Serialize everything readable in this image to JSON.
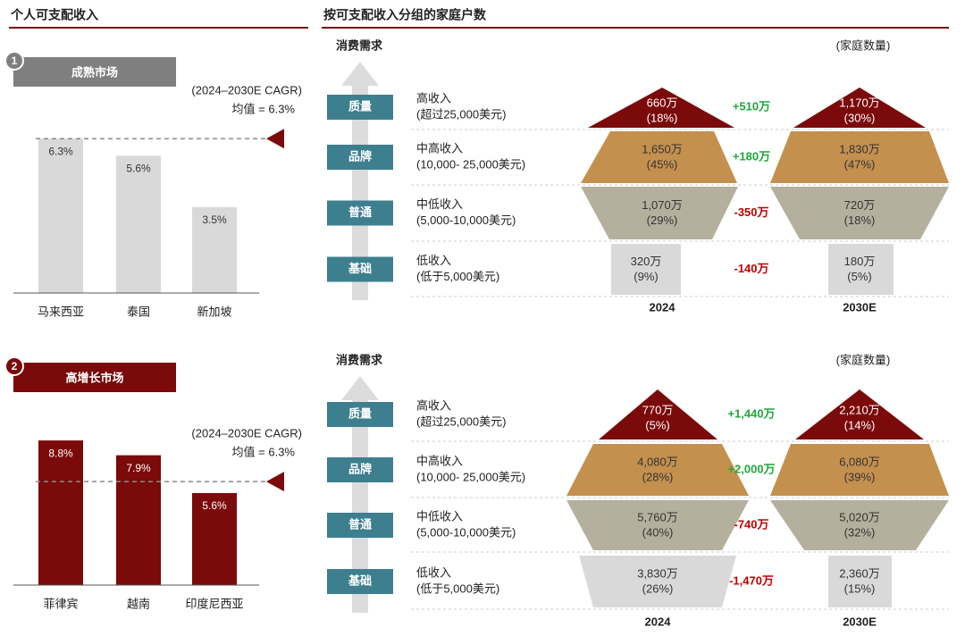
{
  "left_title": "个人可支配收入",
  "right_title": "按可支配收入分组的家庭户数",
  "chart_data": [
    {
      "type": "bar",
      "badge": "1",
      "title": "成熟市场",
      "subtitle": "(2024–2030E CAGR)",
      "average": 6.3,
      "average_label": "均值 = 6.3%",
      "categories": [
        "马来西亚",
        "泰国",
        "新加坡"
      ],
      "values": [
        6.3,
        5.6,
        3.5
      ],
      "value_labels": [
        "6.3%",
        "5.6%",
        "3.5%"
      ],
      "color": "#d9d9d9",
      "label_color": "#333333",
      "header_color": "#7f7f7f",
      "ylim": [
        0,
        7
      ]
    },
    {
      "type": "bar",
      "badge": "2",
      "title": "高增长市场",
      "subtitle": "(2024–2030E CAGR)",
      "average": 6.3,
      "average_label": "均值 = 6.3%",
      "categories": [
        "菲律宾",
        "越南",
        "印度尼西亚"
      ],
      "values": [
        8.8,
        7.9,
        5.6
      ],
      "value_labels": [
        "8.8%",
        "7.9%",
        "5.6%"
      ],
      "color": "#7b0a0a",
      "label_color": "#ffffff",
      "header_color": "#7b0a0a",
      "ylim": [
        0,
        10
      ]
    }
  ],
  "pyramids": [
    {
      "axis_label": "消费需求",
      "unit_label": "(家庭数量)",
      "columns": [
        "2024",
        "2030E"
      ],
      "tiers": [
        {
          "tag": "质量",
          "name": "高收入",
          "range": "(超过25,000美元)",
          "cells": [
            [
              "660万",
              "(18%)"
            ],
            [
              "1,170万",
              "(30%)"
            ]
          ],
          "change": "+510万"
        },
        {
          "tag": "品牌",
          "name": "中高收入",
          "range": "(10,000- 25,000美元)",
          "cells": [
            [
              "1,650万",
              "(45%)"
            ],
            [
              "1,830万",
              "(47%)"
            ]
          ],
          "change": "+180万"
        },
        {
          "tag": "普通",
          "name": "中低收入",
          "range": "(5,000-10,000美元)",
          "cells": [
            [
              "1,070万",
              "(29%)"
            ],
            [
              "720万",
              "(18%)"
            ]
          ],
          "change": "-350万"
        },
        {
          "tag": "基础",
          "name": "低收入",
          "range": "(低于5,000美元)",
          "cells": [
            [
              "320万",
              "(9%)"
            ],
            [
              "180万",
              "(5%)"
            ]
          ],
          "change": "-140万"
        }
      ]
    },
    {
      "axis_label": "消费需求",
      "unit_label": "(家庭数量)",
      "columns": [
        "2024",
        "2030E"
      ],
      "tiers": [
        {
          "tag": "质量",
          "name": "高收入",
          "range": "(超过25,000美元)",
          "cells": [
            [
              "770万",
              "(5%)"
            ],
            [
              "2,210万",
              "(14%)"
            ]
          ],
          "change": "+1,440万"
        },
        {
          "tag": "品牌",
          "name": "中高收入",
          "range": "(10,000- 25,000美元)",
          "cells": [
            [
              "4,080万",
              "(28%)"
            ],
            [
              "6,080万",
              "(39%)"
            ]
          ],
          "change": "+2,000万"
        },
        {
          "tag": "普通",
          "name": "中低收入",
          "range": "(5,000-10,000美元)",
          "cells": [
            [
              "5,760万",
              "(40%)"
            ],
            [
              "5,020万",
              "(32%)"
            ]
          ],
          "change": "-740万"
        },
        {
          "tag": "基础",
          "name": "低收入",
          "range": "(低于5,000美元)",
          "cells": [
            [
              "3,830万",
              "(26%)"
            ],
            [
              "2,360万",
              "(15%)"
            ]
          ],
          "change": "-1,470万"
        }
      ]
    }
  ]
}
